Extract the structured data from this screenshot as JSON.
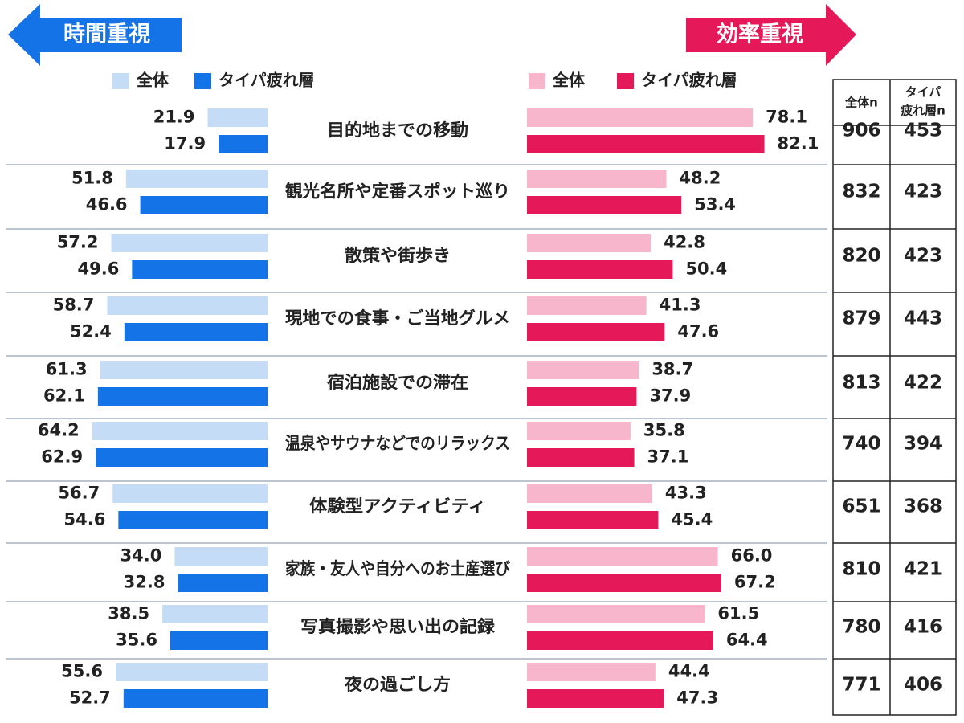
{
  "header": {
    "left_label": "時間重視",
    "right_label": "効率重視"
  },
  "colors": {
    "left_dark": "#1473e6",
    "left_light": "#c5dcf7",
    "right_dark": "#e5195a",
    "right_light": "#f7b6cb",
    "arrow_blue": "#1473e6",
    "arrow_pink": "#e5195a"
  },
  "chart_data": {
    "type": "bar",
    "left_group_title": "時間重視",
    "right_group_title": "効率重視",
    "legend": {
      "overall": "全体",
      "segment": "タイパ疲れ層"
    },
    "categories": [
      "目的地までの移動",
      "観光名所や定番スポット巡り",
      "散策や街歩き",
      "現地での食事・ご当地グルメ",
      "宿泊施設での滞在",
      "温泉やサウナなどでのリラックス",
      "体験型アクティビティ",
      "家族・友人や自分へのお土産選び",
      "写真撮影や思い出の記録",
      "夜の過ごし方"
    ],
    "series": [
      {
        "group": "時間重視",
        "name": "全体",
        "values": [
          21.9,
          51.8,
          57.2,
          58.7,
          61.3,
          64.2,
          56.7,
          34.0,
          38.5,
          55.6
        ]
      },
      {
        "group": "時間重視",
        "name": "タイパ疲れ層",
        "values": [
          17.9,
          46.6,
          49.6,
          52.4,
          62.1,
          62.9,
          54.6,
          32.8,
          35.6,
          52.7
        ]
      },
      {
        "group": "効率重視",
        "name": "全体",
        "values": [
          78.1,
          48.2,
          42.8,
          41.3,
          38.7,
          35.8,
          43.3,
          66.0,
          61.5,
          44.4
        ]
      },
      {
        "group": "効率重視",
        "name": "タイパ疲れ層",
        "values": [
          82.1,
          53.4,
          50.4,
          47.6,
          37.9,
          37.1,
          45.4,
          67.2,
          64.4,
          47.3
        ]
      }
    ],
    "table": {
      "headers": [
        "全体n",
        "タイパ\n疲れ層n"
      ],
      "overall_n": [
        906,
        832,
        820,
        879,
        813,
        740,
        651,
        810,
        780,
        771
      ],
      "segment_n": [
        453,
        423,
        423,
        443,
        422,
        394,
        368,
        421,
        416,
        406
      ]
    },
    "xlim": [
      0,
      100
    ]
  }
}
